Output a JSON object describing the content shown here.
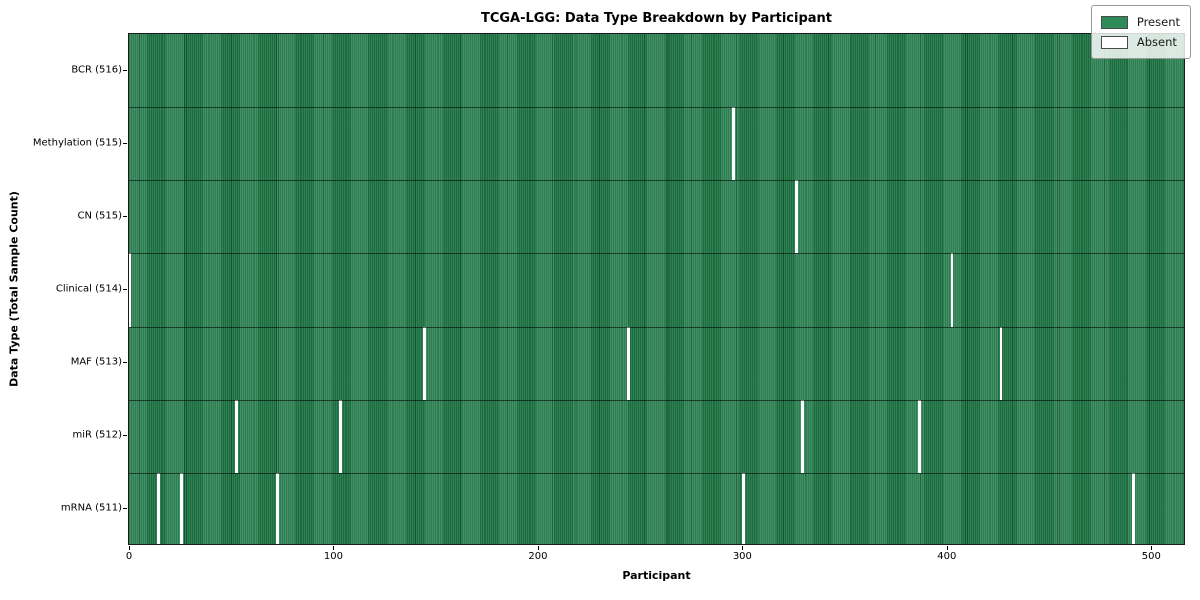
{
  "chart_data": {
    "type": "heatmap",
    "title": "TCGA-LGG: Data Type Breakdown by Participant",
    "xlabel": "Participant",
    "ylabel": "Data Type (Total Sample Count)",
    "x_ticks": [
      0,
      100,
      200,
      300,
      400,
      500
    ],
    "x_range": [
      0,
      517
    ],
    "n_participants": 516,
    "grid": false,
    "legend_position": "upper right",
    "legend": [
      {
        "label": "Present",
        "color": "#2e8b57"
      },
      {
        "label": "Absent",
        "color": "#ffffff"
      }
    ],
    "rows": [
      {
        "label": "BCR (516)",
        "data_type": "BCR",
        "present_count": 516,
        "absent_participants": []
      },
      {
        "label": "Methylation (515)",
        "data_type": "Methylation",
        "present_count": 515,
        "absent_participants": [
          295
        ]
      },
      {
        "label": "CN (515)",
        "data_type": "CN",
        "present_count": 515,
        "absent_participants": [
          326
        ]
      },
      {
        "label": "Clinical (514)",
        "data_type": "Clinical",
        "present_count": 514,
        "absent_participants": [
          0,
          402
        ]
      },
      {
        "label": "MAF (513)",
        "data_type": "MAF",
        "present_count": 513,
        "absent_participants": [
          144,
          244,
          426
        ]
      },
      {
        "label": "miR (512)",
        "data_type": "miR",
        "present_count": 512,
        "absent_participants": [
          52,
          103,
          329,
          386
        ]
      },
      {
        "label": "mRNA (511)",
        "data_type": "mRNA",
        "present_count": 511,
        "absent_participants": [
          14,
          25,
          72,
          300,
          491
        ]
      }
    ],
    "colors": {
      "present": "#2e8b57",
      "absent": "#ffffff",
      "bar_edge": "rgba(10,40,24,0.55)",
      "spine": "#1a1a1a"
    }
  }
}
